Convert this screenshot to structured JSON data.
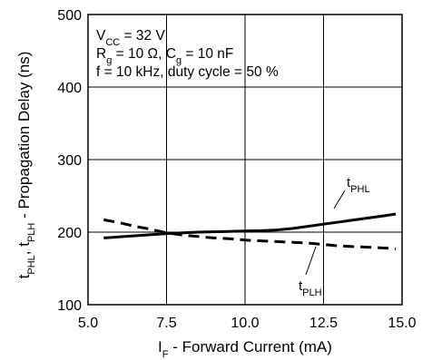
{
  "chart_data": {
    "type": "line",
    "title": "",
    "xlabel": {
      "main": "I",
      "sub": "F",
      "rest": " - Forward Current (mA)"
    },
    "ylabel": {
      "parts": [
        {
          "t": "t",
          "sub": false
        },
        {
          "t": "PHL",
          "sub": true
        },
        {
          "t": ", t",
          "sub": false
        },
        {
          "t": "PLH",
          "sub": true
        },
        {
          "t": " - Propagation Delay (ns)",
          "sub": false
        }
      ]
    },
    "xlim": [
      5.0,
      15.0
    ],
    "ylim": [
      100,
      500
    ],
    "xticks": [
      5.0,
      7.5,
      10.0,
      12.5,
      15.0
    ],
    "xtick_labels": [
      "5.0",
      "7.5",
      "10.0",
      "12.5",
      "15.0"
    ],
    "yticks": [
      100,
      200,
      300,
      400,
      500
    ],
    "ytick_labels": [
      "100",
      "200",
      "300",
      "400",
      "500"
    ],
    "grid": true,
    "conditions": [
      [
        {
          "t": "V",
          "sub": false
        },
        {
          "t": "CC",
          "sub": true
        },
        {
          "t": " = 32 V",
          "sub": false
        }
      ],
      [
        {
          "t": "R",
          "sub": false
        },
        {
          "t": "g",
          "sub": true
        },
        {
          "t": " = 10 Ω, C",
          "sub": false
        },
        {
          "t": "g",
          "sub": true
        },
        {
          "t": " = 10 nF",
          "sub": false
        }
      ],
      [
        {
          "t": "f = 10 kHz, duty cycle = 50 %",
          "sub": false
        }
      ]
    ],
    "series": [
      {
        "name": {
          "main": "t",
          "sub": "PHL"
        },
        "style": "solid",
        "x": [
          5.5,
          6.5,
          7.5,
          8.5,
          9.5,
          10.5,
          11.0,
          11.5,
          12.0,
          12.5,
          13.0,
          13.5,
          14.0,
          14.5,
          14.8
        ],
        "y": [
          192,
          195,
          198,
          200,
          201,
          202,
          203,
          205,
          208,
          211,
          214,
          217,
          220,
          223,
          225
        ]
      },
      {
        "name": {
          "main": "t",
          "sub": "PLH"
        },
        "style": "dashed",
        "x": [
          5.5,
          6.0,
          6.5,
          7.0,
          7.5,
          8.0,
          8.5,
          9.0,
          9.5,
          10.0,
          10.5,
          11.0,
          11.5,
          12.0,
          12.5,
          13.0,
          13.5,
          14.0,
          14.5,
          14.8
        ],
        "y": [
          217,
          213,
          208,
          204,
          199,
          196,
          194,
          192,
          191,
          189,
          188,
          187,
          186,
          185,
          183,
          181,
          180,
          179,
          178,
          177
        ]
      }
    ]
  }
}
